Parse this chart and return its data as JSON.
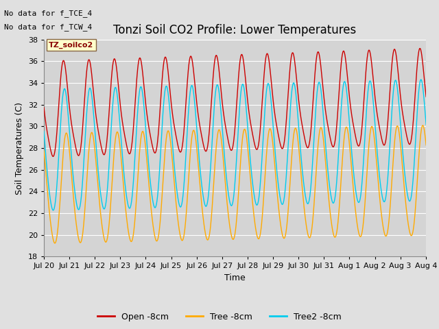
{
  "title": "Tonzi Soil CO2 Profile: Lower Temperatures",
  "xlabel": "Time",
  "ylabel": "Soil Temperatures (C)",
  "ylim": [
    18,
    38
  ],
  "yticks": [
    18,
    20,
    22,
    24,
    26,
    28,
    30,
    32,
    34,
    36,
    38
  ],
  "x_tick_labels": [
    "Jul 20",
    "Jul 21",
    "Jul 22",
    "Jul 23",
    "Jul 24",
    "Jul 25",
    "Jul 26",
    "Jul 27",
    "Jul 28",
    "Jul 29",
    "Jul 30",
    "Jul 31",
    "Aug 1",
    "Aug 2",
    "Aug 3",
    "Aug 4"
  ],
  "annotations": [
    "No data for f_TCE_4",
    "No data for f_TCW_4"
  ],
  "legend_label": "TZ_soilco2",
  "series_labels": [
    "Open -8cm",
    "Tree -8cm",
    "Tree2 -8cm"
  ],
  "series_colors": [
    "#cc0000",
    "#ffaa00",
    "#00ccee"
  ],
  "background_color": "#e0e0e0",
  "plot_bg_color": "#d4d4d4",
  "grid_color": "#ffffff",
  "title_fontsize": 12,
  "label_fontsize": 9,
  "tick_fontsize": 8,
  "annot_fontsize": 8
}
